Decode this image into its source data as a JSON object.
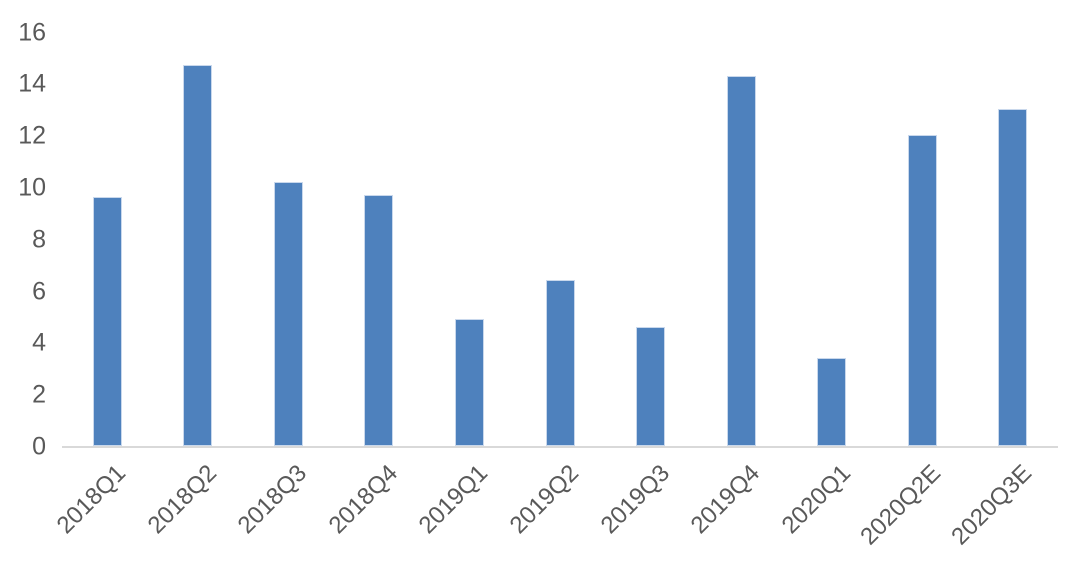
{
  "chart_data": {
    "type": "bar",
    "title": "",
    "xlabel": "",
    "ylabel": "",
    "categories": [
      "2018Q1",
      "2018Q2",
      "2018Q3",
      "2018Q4",
      "2019Q1",
      "2019Q2",
      "2019Q3",
      "2019Q4",
      "2020Q1",
      "2020Q2E",
      "2020Q3E"
    ],
    "values": [
      9.6,
      14.7,
      10.2,
      9.7,
      4.9,
      6.4,
      4.6,
      14.3,
      3.4,
      12.0,
      13.0
    ],
    "ylim": [
      0,
      16
    ],
    "yticks": [
      0,
      2,
      4,
      6,
      8,
      10,
      12,
      14,
      16
    ],
    "grid": false,
    "legend": "none",
    "colors": {
      "bar_fill": "#4e81bd",
      "bar_border": "#c9d8ec",
      "axis_line": "#d9d9d9",
      "tick_label": "#595959",
      "background": "#ffffff"
    }
  }
}
